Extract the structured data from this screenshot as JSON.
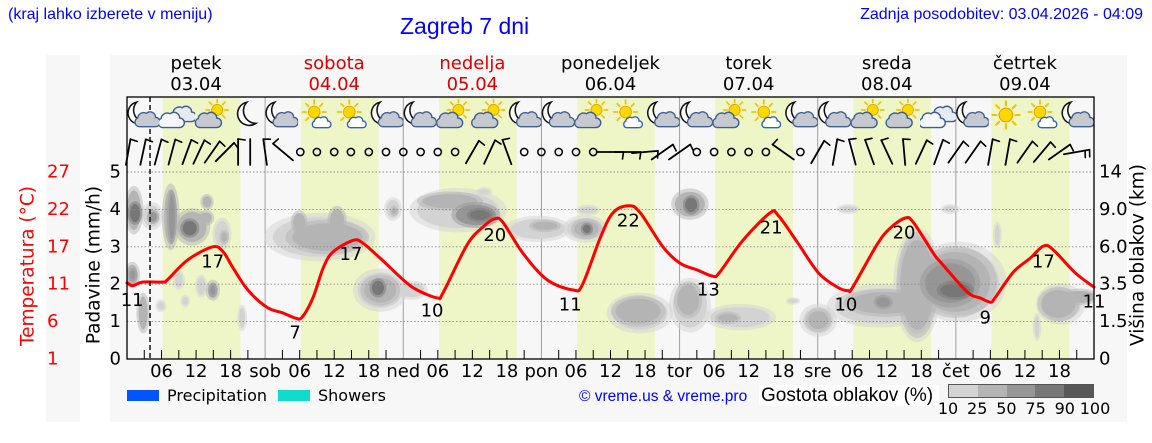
{
  "header": {
    "hint": "(kraj lahko izberete v meniju)",
    "title": "Zagreb 7 dni",
    "updated": "Zadnja posodobitev: 03.04.2026 - 04:09"
  },
  "colors": {
    "link_blue": "#0000ff",
    "weekend": "#dd0000",
    "temperature": "#ff0000",
    "daylight": "#eef5c6",
    "panel": "#f7f7f7",
    "grid": "#8a8a8a",
    "day_separator": "#a0a0a0"
  },
  "days": [
    {
      "name": "petek",
      "date": "03.04",
      "weekend": false
    },
    {
      "name": "sobota",
      "date": "04.04",
      "weekend": true,
      "abbr": "sob"
    },
    {
      "name": "nedelja",
      "date": "05.04",
      "weekend": true,
      "abbr": "ned"
    },
    {
      "name": "ponedeljek",
      "date": "06.04",
      "weekend": false,
      "abbr": "pon"
    },
    {
      "name": "torek",
      "date": "07.04",
      "weekend": false,
      "abbr": "tor"
    },
    {
      "name": "sreda",
      "date": "08.04",
      "weekend": false,
      "abbr": "sre"
    },
    {
      "name": "četrtek",
      "date": "09.04",
      "weekend": false,
      "abbr": "čet"
    }
  ],
  "axes": {
    "precip_title": "Padavine (mm/h)",
    "precip_ticks": [
      "0",
      "1",
      "2",
      "3",
      "4",
      "5"
    ],
    "temp_title": "Temperatura (°C)",
    "temp_ticks": [
      "1",
      "6",
      "11",
      "17",
      "22",
      "27"
    ],
    "temp_range": [
      1,
      27
    ],
    "cloud_title": "Višina oblakov (km)",
    "cloud_ticks": [
      "0",
      "1.5",
      "3.5",
      "6.0",
      "9.0",
      "14"
    ],
    "hour_ticks": [
      "06",
      "12",
      "18"
    ]
  },
  "now_hour": 4.0,
  "daylight": {
    "sunrise_hour": 6.2,
    "sunset_hour": 19.7
  },
  "icons": {
    "slot_hours": [
      2.6,
      8.7,
      14.8,
      20.9
    ],
    "by_day": [
      [
        "night-partly-cloudy",
        "cloudy",
        "partly-cloudy",
        "clear-night"
      ],
      [
        "night-partly-cloudy",
        "mostly-sunny",
        "mostly-sunny",
        "night-partly-cloudy"
      ],
      [
        "night-partly-cloudy",
        "partly-cloudy",
        "partly-cloudy",
        "night-partly-cloudy"
      ],
      [
        "night-partly-cloudy",
        "partly-cloudy",
        "mostly-sunny",
        "night-partly-cloudy"
      ],
      [
        "night-partly-cloudy",
        "partly-cloudy",
        "mostly-sunny",
        "night-partly-cloudy"
      ],
      [
        "night-partly-cloudy",
        "partly-cloudy",
        "partly-cloudy",
        "cloudy"
      ],
      [
        "night-partly-cloudy",
        "clear-day",
        "mostly-sunny",
        "night-partly-cloudy"
      ]
    ]
  },
  "wind_barbs": {
    "fields": [
      "hour",
      "staff_angle_deg",
      "ticks"
    ],
    "items": [
      [
        0.2,
        10,
        1
      ],
      [
        2.8,
        12,
        1
      ],
      [
        5.4,
        15,
        1
      ],
      [
        7.8,
        15,
        1
      ],
      [
        10.4,
        20,
        1
      ],
      [
        12.5,
        25,
        1
      ],
      [
        14.8,
        35,
        1
      ],
      [
        17.0,
        45,
        1
      ],
      [
        19.3,
        0,
        1
      ],
      [
        21.4,
        0,
        0
      ],
      [
        24.0,
        -8,
        1
      ],
      [
        27.1,
        -50,
        1
      ],
      [
        30.1,
        null,
        0
      ],
      [
        33.0,
        null,
        0
      ],
      [
        36.0,
        null,
        0
      ],
      [
        38.9,
        null,
        0
      ],
      [
        42.0,
        null,
        0
      ],
      [
        45.0,
        null,
        0
      ],
      [
        48.0,
        null,
        0
      ],
      [
        51.0,
        null,
        0
      ],
      [
        54.0,
        null,
        0
      ],
      [
        57.0,
        null,
        0
      ],
      [
        60.0,
        30,
        1
      ],
      [
        63.0,
        25,
        1
      ],
      [
        66.0,
        -20,
        1
      ],
      [
        69.0,
        null,
        0
      ],
      [
        72.0,
        null,
        0
      ],
      [
        75.0,
        null,
        0
      ],
      [
        78.0,
        null,
        0
      ],
      [
        81.0,
        null,
        0
      ],
      [
        84.0,
        90,
        1
      ],
      [
        87.0,
        90,
        1
      ],
      [
        90.0,
        85,
        1
      ],
      [
        93.0,
        55,
        1
      ],
      [
        96.0,
        55,
        1
      ],
      [
        99.0,
        null,
        0
      ],
      [
        102.0,
        null,
        0
      ],
      [
        105.0,
        null,
        0
      ],
      [
        108.0,
        null,
        0
      ],
      [
        111.0,
        null,
        0
      ],
      [
        114.0,
        -55,
        1
      ],
      [
        117.0,
        null,
        0
      ],
      [
        120.0,
        30,
        1
      ],
      [
        123.0,
        10,
        1
      ],
      [
        126.0,
        -15,
        1
      ],
      [
        129.0,
        -20,
        1
      ],
      [
        132.0,
        -25,
        1
      ],
      [
        135.0,
        -5,
        1
      ],
      [
        138.0,
        25,
        1
      ],
      [
        141.0,
        20,
        1
      ],
      [
        144.0,
        35,
        1
      ],
      [
        147.0,
        35,
        1
      ],
      [
        150.0,
        10,
        1
      ],
      [
        153.0,
        10,
        1
      ],
      [
        156.0,
        35,
        1
      ],
      [
        159.0,
        40,
        1
      ],
      [
        162.0,
        55,
        1
      ],
      [
        165.0,
        80,
        2
      ]
    ]
  },
  "legend": {
    "precipitation": {
      "label": "Precipitation",
      "color": "#0055ff"
    },
    "showers": {
      "label": "Showers",
      "color": "#11dccc"
    },
    "credit": "© vreme.us & vreme.pro",
    "density_title": "Gostota oblakov (%)",
    "density_labels": [
      "10",
      "25",
      "50",
      "75",
      "90",
      "100"
    ],
    "density_colors": [
      "#d3d3d3",
      "#b4b4b4",
      "#969696",
      "#777777",
      "#585858"
    ]
  },
  "chart_data": {
    "type": "line",
    "title": "Zagreb 7 dni",
    "x_unit": "hours from 03.04 00:00",
    "xlim": [
      0,
      168
    ],
    "xlabel": "",
    "ylabel": "Temperatura (°C)",
    "ylim": [
      1,
      27
    ],
    "secondary_axes": [
      {
        "label": "Padavine (mm/h)",
        "range": [
          0,
          5
        ]
      },
      {
        "label": "Višina oblakov (km)",
        "ticks": [
          0,
          1.5,
          3.5,
          6.0,
          9.0,
          14
        ]
      }
    ],
    "grid": true,
    "legend_position": "bottom",
    "series": [
      {
        "name": "Temperatura",
        "color": "#ff0000",
        "x": [
          0,
          1.0,
          2.8,
          6.3,
          7.0,
          10.6,
          14.9,
          16.7,
          18.4,
          21.0,
          24.3,
          27.1,
          29.2,
          30.4,
          32.3,
          34.1,
          35.8,
          39.3,
          41.0,
          44.0,
          48.0,
          50.4,
          53.9,
          54.9,
          59.1,
          61.9,
          63.9,
          65.3,
          68.8,
          73.0,
          77.5,
          79.1,
          82.2,
          84.4,
          87.1,
          89.1,
          93.1,
          96.1,
          99.0,
          101.8,
          103.0,
          107.0,
          111.7,
          113.1,
          116.4,
          120.1,
          123.4,
          125.3,
          126.1,
          130.3,
          132.6,
          135.2,
          136.6,
          140.1,
          141.3,
          146.0,
          148.2,
          150.0,
          150.8,
          154.0,
          156.9,
          159.2,
          160.9,
          164.7,
          168.0
        ],
        "values": [
          11.6,
          11.2,
          11.7,
          11.7,
          12.0,
          14.8,
          16.6,
          15.9,
          13.7,
          10.6,
          8.2,
          7.4,
          6.7,
          6.8,
          9.5,
          13.7,
          15.9,
          17.5,
          17.1,
          15.0,
          12.0,
          10.6,
          9.5,
          10.2,
          16.9,
          19.4,
          20.5,
          20.0,
          15.7,
          12.0,
          10.6,
          11.3,
          17.8,
          21.3,
          22.3,
          21.4,
          16.6,
          14.3,
          13.4,
          12.5,
          13.1,
          17.5,
          21.3,
          21.0,
          17.3,
          13.0,
          11.0,
          10.5,
          11.0,
          16.9,
          19.2,
          20.6,
          20.0,
          15.7,
          14.5,
          10.3,
          9.5,
          8.9,
          9.5,
          13.1,
          15.0,
          16.7,
          16.2,
          13.0,
          11.0
        ]
      },
      {
        "name": "Precipitation",
        "color": "#0055ff",
        "values": []
      },
      {
        "name": "Showers",
        "color": "#11dccc",
        "values": []
      }
    ],
    "annotations": [
      {
        "x": 0.9,
        "y": 9.1,
        "text": "11"
      },
      {
        "x": 14.9,
        "y": 14.5,
        "text": "17"
      },
      {
        "x": 29.2,
        "y": 4.6,
        "text": "7"
      },
      {
        "x": 38.9,
        "y": 15.5,
        "text": "17"
      },
      {
        "x": 53.0,
        "y": 7.7,
        "text": "10"
      },
      {
        "x": 63.9,
        "y": 18.2,
        "text": "20"
      },
      {
        "x": 77.0,
        "y": 8.5,
        "text": "11"
      },
      {
        "x": 87.1,
        "y": 20.2,
        "text": "22"
      },
      {
        "x": 101.0,
        "y": 10.6,
        "text": "13"
      },
      {
        "x": 111.9,
        "y": 19.2,
        "text": "21"
      },
      {
        "x": 124.9,
        "y": 8.5,
        "text": "10"
      },
      {
        "x": 135.0,
        "y": 18.5,
        "text": "20"
      },
      {
        "x": 149.1,
        "y": 6.7,
        "text": "9"
      },
      {
        "x": 159.2,
        "y": 14.5,
        "text": "17"
      },
      {
        "x": 168.0,
        "y": 8.9,
        "text": "11"
      }
    ],
    "cloud_density": {
      "fields": [
        "hour",
        "height_axis_units",
        "half_width_hours",
        "half_height_units",
        "level"
      ],
      "levels_pct": [
        10,
        25,
        50,
        75,
        90,
        100
      ],
      "cells": [
        [
          1.2,
          3.98,
          1.22,
          0.53,
          2
        ],
        [
          1.4,
          3.9,
          0.87,
          0.24,
          4
        ],
        [
          4.3,
          3.82,
          1.48,
          0.29,
          1
        ],
        [
          4.5,
          3.8,
          0.7,
          0.13,
          3
        ],
        [
          7.6,
          3.8,
          1.13,
          0.74,
          2
        ],
        [
          7.8,
          3.8,
          0.52,
          0.6,
          3
        ],
        [
          11.3,
          3.53,
          2.52,
          0.4,
          2
        ],
        [
          10.9,
          3.5,
          1.22,
          0.19,
          4
        ],
        [
          13.9,
          4.2,
          0.78,
          0.15,
          2
        ],
        [
          13.7,
          3.77,
          1.04,
          0.15,
          2
        ],
        [
          16.5,
          3.34,
          1.22,
          0.35,
          1
        ],
        [
          16.9,
          3.26,
          0.52,
          0.13,
          2
        ],
        [
          0.9,
          2.25,
          0.96,
          0.27,
          2
        ],
        [
          1.0,
          2.25,
          0.43,
          0.13,
          3
        ],
        [
          2.8,
          1.23,
          0.78,
          0.44,
          2
        ],
        [
          5.9,
          1.42,
          0.61,
          0.11,
          1
        ],
        [
          9.0,
          2.11,
          0.7,
          0.19,
          1
        ],
        [
          10.1,
          1.55,
          0.52,
          0.11,
          1
        ],
        [
          12.9,
          1.95,
          0.7,
          0.23,
          1
        ],
        [
          14.9,
          1.84,
          0.87,
          0.21,
          2
        ],
        [
          14.9,
          1.84,
          0.43,
          0.13,
          3
        ],
        [
          20.0,
          1.1,
          0.52,
          0.27,
          1
        ],
        [
          33.5,
          3.26,
          8.17,
          0.53,
          1
        ],
        [
          34.8,
          3.26,
          6.08,
          0.37,
          2
        ],
        [
          29.9,
          3.66,
          1.04,
          0.24,
          2
        ],
        [
          36.5,
          3.72,
          1.22,
          0.29,
          2
        ],
        [
          44.0,
          1.84,
          3.91,
          0.47,
          1
        ],
        [
          44.0,
          1.84,
          2.78,
          0.33,
          2
        ],
        [
          43.6,
          1.9,
          1.04,
          0.19,
          4
        ],
        [
          46.2,
          4.01,
          1.13,
          0.24,
          1
        ],
        [
          46.4,
          3.96,
          0.43,
          0.09,
          2
        ],
        [
          49.5,
          1.84,
          2.17,
          0.19,
          1
        ],
        [
          57.5,
          3.98,
          7.12,
          0.48,
          1
        ],
        [
          56.1,
          4.22,
          4.78,
          0.19,
          2
        ],
        [
          60.6,
          3.85,
          3.48,
          0.27,
          3
        ],
        [
          61.3,
          3.85,
          1.74,
          0.13,
          4
        ],
        [
          62.0,
          4.47,
          1.04,
          0.07,
          1
        ],
        [
          71.4,
          3.48,
          4.78,
          0.27,
          1
        ],
        [
          72.6,
          3.56,
          2.17,
          0.11,
          2
        ],
        [
          79.6,
          3.48,
          3.13,
          0.29,
          1
        ],
        [
          79.8,
          3.48,
          2.09,
          0.21,
          2
        ],
        [
          79.9,
          3.48,
          0.7,
          0.11,
          4
        ],
        [
          80.1,
          3.98,
          1.56,
          0.09,
          1
        ],
        [
          89.1,
          1.23,
          4.78,
          0.44,
          1
        ],
        [
          88.8,
          1.28,
          3.91,
          0.33,
          2
        ],
        [
          97.8,
          4.14,
          2.61,
          0.33,
          2
        ],
        [
          98.0,
          4.12,
          1.04,
          0.19,
          4
        ],
        [
          97.8,
          1.44,
          2.95,
          0.6,
          1
        ],
        [
          97.5,
          1.58,
          1.91,
          0.4,
          2
        ],
        [
          106.5,
          1.12,
          5.21,
          0.27,
          1
        ],
        [
          104.4,
          1.1,
          1.74,
          0.11,
          2
        ],
        [
          115.7,
          1.55,
          0.87,
          0.05,
          1
        ],
        [
          120.1,
          1.04,
          2.61,
          0.35,
          1
        ],
        [
          120.1,
          1.04,
          1.74,
          0.24,
          2
        ],
        [
          125.3,
          4.01,
          1.56,
          0.08,
          1
        ],
        [
          130.8,
          1.42,
          7.82,
          0.47,
          1
        ],
        [
          131.7,
          1.5,
          6.08,
          0.29,
          2
        ],
        [
          131.4,
          1.52,
          1.22,
          0.13,
          3
        ],
        [
          137.3,
          1.98,
          3.4,
          1.3,
          1
        ],
        [
          137.3,
          1.98,
          2.95,
          1.2,
          2
        ],
        [
          138.1,
          2.7,
          1.22,
          0.4,
          1
        ],
        [
          144.5,
          2.06,
          7.0,
          0.9,
          1
        ],
        [
          143.9,
          2.06,
          6.08,
          0.8,
          2
        ],
        [
          143.0,
          2.03,
          4.34,
          0.53,
          3
        ],
        [
          143.9,
          1.84,
          2.61,
          0.19,
          4
        ],
        [
          143.0,
          4.01,
          1.22,
          0.08,
          1
        ],
        [
          151.2,
          3.32,
          0.43,
          0.27,
          1
        ],
        [
          162.2,
          1.47,
          3.48,
          0.45,
          1
        ],
        [
          161.8,
          1.47,
          2.95,
          0.37,
          2
        ],
        [
          165.6,
          1.66,
          2.61,
          0.16,
          2
        ],
        [
          158.1,
          0.86,
          0.43,
          0.29,
          1
        ]
      ]
    }
  }
}
